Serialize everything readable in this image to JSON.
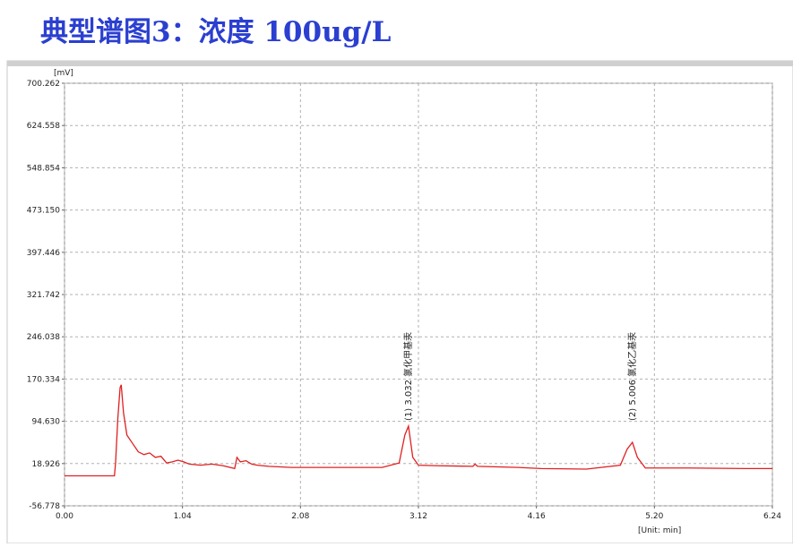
{
  "chart_data": {
    "type": "line",
    "title": "典型谱图3：浓度 100ug/L",
    "y_label": "[mV]",
    "x_label": "[Unit: min]",
    "xlim": [
      0,
      6.24
    ],
    "xticks": [
      {
        "value": 0,
        "label": "0.00"
      },
      1.04,
      2.08,
      3.12,
      4.16,
      {
        "value": 5.2,
        "label": "5.20"
      },
      6.24
    ],
    "ylim": [
      -56.778,
      700.262
    ],
    "yticks": [
      -56.778,
      18.926,
      {
        "value": 94.63,
        "label": "94.630"
      },
      170.334,
      246.038,
      321.742,
      397.446,
      {
        "value": 473.15,
        "label": "473.150"
      },
      548.854,
      624.558,
      700.262
    ],
    "grid": true,
    "annotations": [
      {
        "text": "(1) 3.032 氯化甲基汞",
        "x": 3.032
      },
      {
        "text": "(2) 5.006 氯化乙基汞",
        "x": 5.006
      }
    ],
    "x": [
      0,
      0.44,
      0.45,
      0.47,
      0.49,
      0.5,
      0.52,
      0.55,
      0.6,
      0.65,
      0.7,
      0.75,
      0.8,
      0.85,
      0.9,
      0.95,
      1.0,
      1.05,
      1.1,
      1.2,
      1.3,
      1.4,
      1.5,
      1.52,
      1.55,
      1.6,
      1.65,
      1.7,
      1.8,
      2.0,
      2.4,
      2.8,
      2.95,
      3.0,
      3.032,
      3.07,
      3.12,
      3.3,
      3.6,
      3.62,
      3.64,
      4.0,
      4.2,
      4.6,
      4.9,
      4.96,
      5.006,
      5.05,
      5.12,
      5.5,
      6.0,
      6.24
    ],
    "series": [
      {
        "color": "#e02020",
        "values": [
          -3,
          -3,
          20,
          100,
          155,
          160,
          110,
          70,
          55,
          40,
          35,
          38,
          30,
          32,
          20,
          22,
          25,
          22,
          18,
          16,
          18,
          15,
          10,
          30,
          22,
          24,
          18,
          16,
          14,
          12,
          12,
          12,
          20,
          70,
          86,
          30,
          16,
          15,
          14,
          18,
          14,
          12,
          10,
          9,
          16,
          45,
          57,
          30,
          11,
          11,
          10,
          10
        ]
      }
    ]
  }
}
